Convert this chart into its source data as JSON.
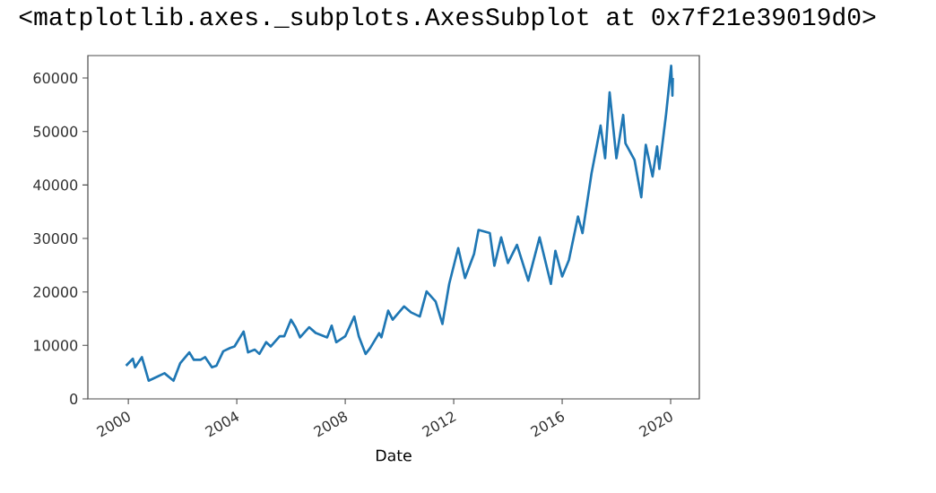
{
  "chart_data": {
    "type": "line",
    "annotations": [
      "<matplotlib.axes._subplots.AxesSubplot at 0x7f21e39019d0>"
    ],
    "xlabel": "Date",
    "x": [
      "1999-12",
      "2000-03",
      "2000-04",
      "2000-07",
      "2000-10",
      "2001-02",
      "2001-05",
      "2001-09",
      "2001-12",
      "2002-04",
      "2002-06",
      "2002-09",
      "2002-11",
      "2003-02",
      "2003-04",
      "2003-07",
      "2003-10",
      "2003-12",
      "2004-04",
      "2004-06",
      "2004-09",
      "2004-11",
      "2005-02",
      "2005-04",
      "2005-08",
      "2005-10",
      "2006-01",
      "2006-03",
      "2006-05",
      "2006-09",
      "2006-12",
      "2007-05",
      "2007-07",
      "2007-09",
      "2008-01",
      "2008-05",
      "2008-07",
      "2008-10",
      "2008-12",
      "2009-04",
      "2009-05",
      "2009-08",
      "2009-10",
      "2010-03",
      "2010-06",
      "2010-10",
      "2011-01",
      "2011-05",
      "2011-08",
      "2011-11",
      "2012-03",
      "2012-06",
      "2012-10",
      "2012-12",
      "2013-05",
      "2013-07",
      "2013-10",
      "2014-01",
      "2014-05",
      "2014-10",
      "2015-03",
      "2015-08",
      "2015-10",
      "2016-01",
      "2016-04",
      "2016-08",
      "2016-10",
      "2017-02",
      "2017-04",
      "2017-06",
      "2017-08",
      "2017-10",
      "2018-01",
      "2018-04",
      "2018-05",
      "2018-09",
      "2018-12",
      "2019-02",
      "2019-05",
      "2019-07",
      "2019-08",
      "2019-11",
      "2020-01-08",
      "2020-01-25",
      "2020-01-30"
    ],
    "series": [
      {
        "color": "#1f77b4",
        "values": [
          6200,
          7500,
          5900,
          7800,
          3400,
          4200,
          4800,
          3400,
          6700,
          8700,
          7300,
          7300,
          7800,
          5900,
          6200,
          8900,
          9500,
          9800,
          12600,
          8700,
          9200,
          8400,
          10600,
          9800,
          11700,
          11700,
          14800,
          13400,
          11500,
          13400,
          12300,
          11500,
          13700,
          10600,
          11700,
          15400,
          11700,
          8400,
          9500,
          12300,
          11500,
          16500,
          14800,
          17300,
          16200,
          15400,
          20100,
          18200,
          14000,
          21500,
          28200,
          22600,
          27100,
          31600,
          31000,
          24900,
          30200,
          25400,
          28800,
          22100,
          30200,
          21500,
          27700,
          22900,
          26000,
          34100,
          31000,
          42200,
          46600,
          51100,
          45000,
          57300,
          45000,
          53100,
          47800,
          44700,
          37700,
          47500,
          41600,
          47200,
          43000,
          53300,
          62300,
          56700,
          60000
        ]
      }
    ],
    "xlim": [
      "1998-07-04",
      "2021-01-22"
    ],
    "xticks": [
      "2000",
      "2004",
      "2008",
      "2012",
      "2016",
      "2020"
    ],
    "ylim": [
      0,
      64200
    ],
    "yticks": [
      0,
      10000,
      20000,
      30000,
      40000,
      50000,
      60000
    ]
  }
}
